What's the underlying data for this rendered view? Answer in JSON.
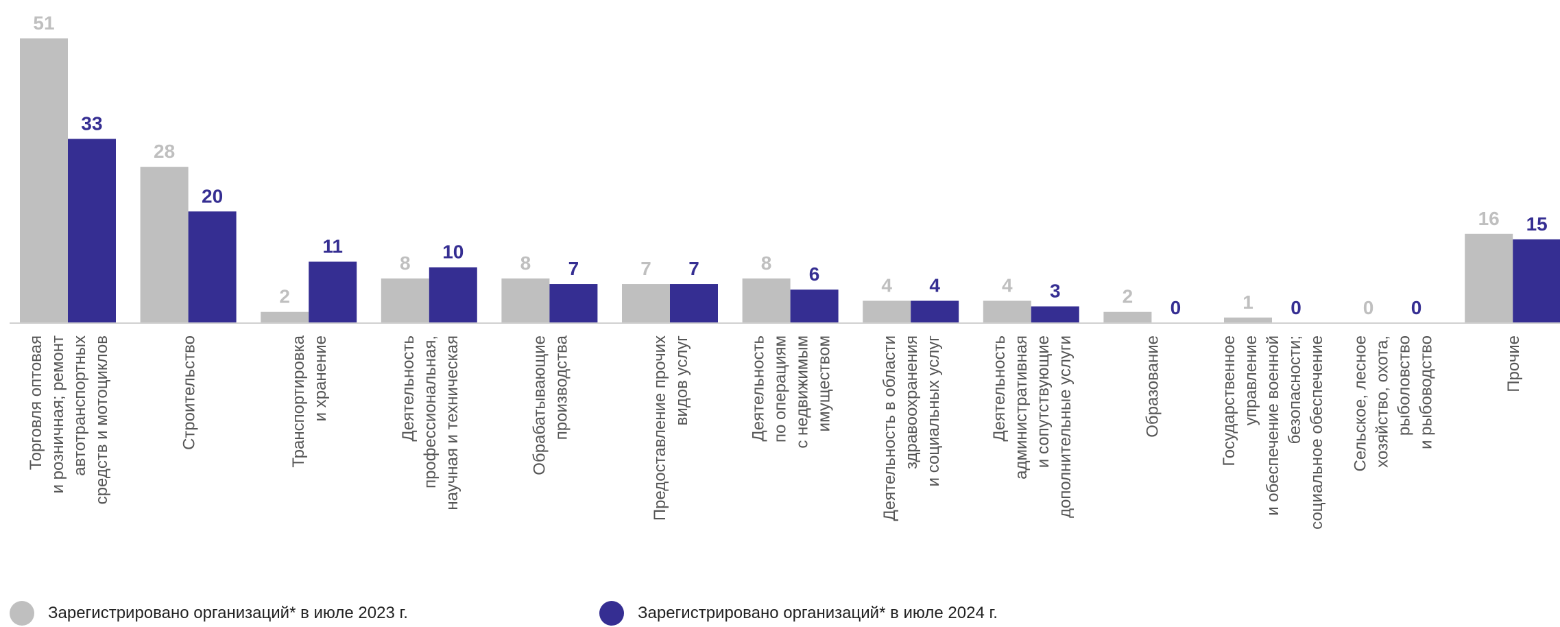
{
  "chart_data": {
    "type": "bar",
    "categories": [
      "Торговля оптовая\nи розничная; ремонт\nавтотранспортных\nсредств и мотоциклов",
      "Строительство",
      "Транспортировка\nи хранение",
      "Деятельность\nпрофессиональная,\nнаучная и техническая",
      "Обрабатывающие\nпроизводства",
      "Предоставление прочих\nвидов услуг",
      "Деятельность\nпо операциям\nс недвижимым\nимуществом",
      "Деятельность в области\nздравоохранения\nи социальных услуг",
      "Деятельность\nадминистративная\nи сопутствующие\nдополнительные услуги",
      "Образование",
      "Государственное\nуправление\nи обеспечение военной\nбезопасности;\nсоциальное обеспечение",
      "Сельское, лесное\nхозяйство, охота,\nрыболовство\nи рыбоводство",
      "Прочие"
    ],
    "series": [
      {
        "name": "Зарегистрировано организаций* в июле 2023 г.",
        "color": "#bfbfbf",
        "values": [
          51,
          28,
          2,
          8,
          8,
          7,
          8,
          4,
          4,
          2,
          1,
          0,
          16
        ]
      },
      {
        "name": "Зарегистрировано организаций* в июле 2024 г.",
        "color": "#352e92",
        "values": [
          33,
          20,
          11,
          10,
          7,
          7,
          6,
          4,
          3,
          0,
          0,
          0,
          15
        ]
      }
    ],
    "ylim": [
      0,
      51
    ],
    "grid": false,
    "legend_position": "bottom-left"
  }
}
